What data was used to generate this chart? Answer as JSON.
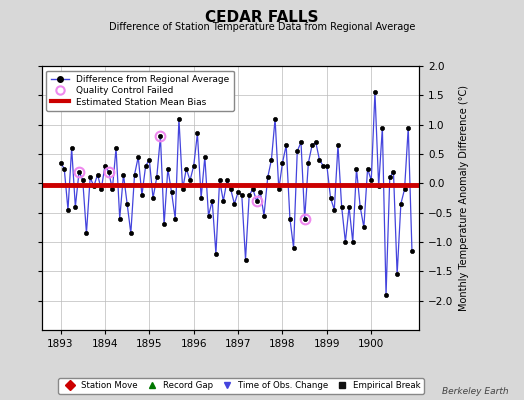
{
  "title": "CEDAR FALLS",
  "subtitle": "Difference of Station Temperature Data from Regional Average",
  "ylabel_right": "Monthly Temperature Anomaly Difference (°C)",
  "credit": "Berkeley Earth",
  "ylim": [
    -2.5,
    2.0
  ],
  "yticks": [
    -2.0,
    -1.5,
    -1.0,
    -0.5,
    0.0,
    0.5,
    1.0,
    1.5,
    2.0
  ],
  "xlim": [
    1892.58,
    1901.08
  ],
  "xticks": [
    1893,
    1894,
    1895,
    1896,
    1897,
    1898,
    1899,
    1900
  ],
  "mean_bias": -0.02,
  "background_color": "#d8d8d8",
  "plot_bg_color": "#ffffff",
  "line_color": "#4444dd",
  "dot_color": "#000000",
  "bias_color": "#cc0000",
  "qc_fail_color": "#ee88ee",
  "data_x": [
    1893.0,
    1893.083,
    1893.167,
    1893.25,
    1893.333,
    1893.417,
    1893.5,
    1893.583,
    1893.667,
    1893.75,
    1893.833,
    1893.917,
    1894.0,
    1894.083,
    1894.167,
    1894.25,
    1894.333,
    1894.417,
    1894.5,
    1894.583,
    1894.667,
    1894.75,
    1894.833,
    1894.917,
    1895.0,
    1895.083,
    1895.167,
    1895.25,
    1895.333,
    1895.417,
    1895.5,
    1895.583,
    1895.667,
    1895.75,
    1895.833,
    1895.917,
    1896.0,
    1896.083,
    1896.167,
    1896.25,
    1896.333,
    1896.417,
    1896.5,
    1896.583,
    1896.667,
    1896.75,
    1896.833,
    1896.917,
    1897.0,
    1897.083,
    1897.167,
    1897.25,
    1897.333,
    1897.417,
    1897.5,
    1897.583,
    1897.667,
    1897.75,
    1897.833,
    1897.917,
    1898.0,
    1898.083,
    1898.167,
    1898.25,
    1898.333,
    1898.417,
    1898.5,
    1898.583,
    1898.667,
    1898.75,
    1898.833,
    1898.917,
    1899.0,
    1899.083,
    1899.167,
    1899.25,
    1899.333,
    1899.417,
    1899.5,
    1899.583,
    1899.667,
    1899.75,
    1899.833,
    1899.917,
    1900.0,
    1900.083,
    1900.167,
    1900.25,
    1900.333,
    1900.417,
    1900.5,
    1900.583,
    1900.667,
    1900.75,
    1900.833,
    1900.917
  ],
  "data_y": [
    0.35,
    0.25,
    -0.45,
    0.6,
    -0.4,
    0.2,
    0.05,
    -0.85,
    0.1,
    -0.05,
    0.15,
    -0.1,
    0.3,
    0.2,
    -0.1,
    0.6,
    -0.6,
    0.15,
    -0.35,
    -0.85,
    0.15,
    0.45,
    -0.2,
    0.3,
    0.4,
    -0.25,
    0.1,
    0.8,
    -0.7,
    0.25,
    -0.15,
    -0.6,
    1.1,
    -0.1,
    0.25,
    0.05,
    0.3,
    0.85,
    -0.25,
    0.45,
    -0.55,
    -0.3,
    -1.2,
    0.05,
    -0.3,
    0.05,
    -0.1,
    -0.35,
    -0.15,
    -0.2,
    -1.3,
    -0.2,
    -0.1,
    -0.3,
    -0.15,
    -0.55,
    0.1,
    0.4,
    1.1,
    -0.1,
    0.35,
    0.65,
    -0.6,
    -1.1,
    0.55,
    0.7,
    -0.6,
    0.35,
    0.65,
    0.7,
    0.4,
    0.3,
    0.3,
    -0.25,
    -0.45,
    0.65,
    -0.4,
    -1.0,
    -0.4,
    -1.0,
    0.25,
    -0.4,
    -0.75,
    0.25,
    0.05,
    1.55,
    -0.05,
    0.95,
    -1.9,
    0.1,
    0.2,
    -1.55,
    -0.35,
    -0.1,
    0.95,
    -1.15
  ],
  "qc_fail_x": [
    1893.417,
    1894.083,
    1895.25,
    1897.417,
    1898.5
  ],
  "qc_fail_y": [
    0.2,
    0.2,
    0.8,
    -0.3,
    -0.6
  ]
}
